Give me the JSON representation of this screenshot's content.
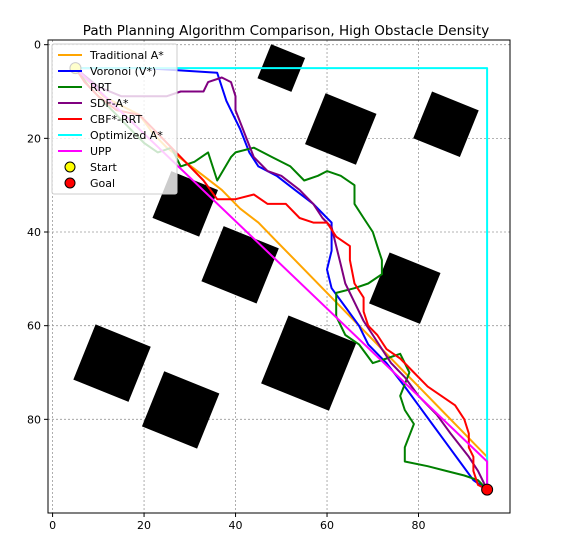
{
  "chart_data": {
    "type": "line",
    "title": "Path Planning Algorithm Comparison, High Obstacle Density",
    "xlabel": "",
    "ylabel": "",
    "xlim": [
      -1,
      100
    ],
    "ylim": [
      100,
      -1
    ],
    "y_axis_inverted": true,
    "grid": true,
    "grid_style": "dotted",
    "legend_position": "top-left",
    "x_ticks": [
      0,
      20,
      40,
      60,
      80
    ],
    "y_ticks": [
      0,
      20,
      40,
      60,
      80
    ],
    "obstacles": [
      {
        "shape": "rotated-square",
        "center": [
          50,
          5
        ],
        "size": 8,
        "color": "#000000"
      },
      {
        "shape": "rotated-square",
        "center": [
          63,
          18
        ],
        "size": 12,
        "color": "#000000"
      },
      {
        "shape": "rotated-square",
        "center": [
          86,
          17
        ],
        "size": 11,
        "color": "#000000"
      },
      {
        "shape": "rotated-square",
        "center": [
          29,
          34
        ],
        "size": 11,
        "color": "#000000"
      },
      {
        "shape": "rotated-square",
        "center": [
          41,
          47
        ],
        "size": 13,
        "color": "#000000"
      },
      {
        "shape": "rotated-square",
        "center": [
          77,
          52
        ],
        "size": 12,
        "color": "#000000"
      },
      {
        "shape": "rotated-square",
        "center": [
          56,
          68
        ],
        "size": 16,
        "color": "#000000"
      },
      {
        "shape": "rotated-square",
        "center": [
          13,
          68
        ],
        "size": 13,
        "color": "#000000"
      },
      {
        "shape": "rotated-square",
        "center": [
          28,
          78
        ],
        "size": 13,
        "color": "#000000"
      }
    ],
    "series": [
      {
        "name": "Traditional A*",
        "color": "#ffa500",
        "points": [
          [
            5,
            5
          ],
          [
            7,
            7
          ],
          [
            9,
            9
          ],
          [
            11,
            11
          ],
          [
            13,
            12
          ],
          [
            15,
            13
          ],
          [
            17,
            14
          ],
          [
            19,
            15
          ],
          [
            22,
            19
          ],
          [
            25,
            22
          ],
          [
            29,
            25
          ],
          [
            33,
            28
          ],
          [
            37,
            31
          ],
          [
            41,
            35
          ],
          [
            45,
            38
          ],
          [
            49,
            42
          ],
          [
            53,
            46
          ],
          [
            57,
            50
          ],
          [
            61,
            54
          ],
          [
            65,
            58
          ],
          [
            69,
            62
          ],
          [
            73,
            66
          ],
          [
            77,
            70
          ],
          [
            81,
            74
          ],
          [
            85,
            78
          ],
          [
            89,
            82
          ],
          [
            92,
            85
          ],
          [
            95,
            88
          ],
          [
            95,
            95
          ]
        ]
      },
      {
        "name": "Voronoi (V*)",
        "color": "#0000ff",
        "points": [
          [
            5,
            5
          ],
          [
            20,
            5
          ],
          [
            36,
            6
          ],
          [
            38,
            12
          ],
          [
            41,
            18
          ],
          [
            43,
            23
          ],
          [
            45,
            26
          ],
          [
            49,
            28
          ],
          [
            53,
            31
          ],
          [
            57,
            34
          ],
          [
            60,
            37
          ],
          [
            61,
            38
          ],
          [
            61,
            44
          ],
          [
            60,
            48
          ],
          [
            61,
            52
          ],
          [
            64,
            56
          ],
          [
            67,
            60
          ],
          [
            69,
            64
          ],
          [
            73,
            68
          ],
          [
            77,
            73
          ],
          [
            80,
            77
          ],
          [
            83,
            81
          ],
          [
            86,
            85
          ],
          [
            89,
            89
          ],
          [
            92,
            93
          ],
          [
            95,
            95
          ]
        ]
      },
      {
        "name": "RRT",
        "color": "#008000",
        "points": [
          [
            5,
            5
          ],
          [
            8,
            9
          ],
          [
            11,
            12
          ],
          [
            14,
            15
          ],
          [
            17,
            18
          ],
          [
            20,
            21
          ],
          [
            23,
            23
          ],
          [
            26,
            22
          ],
          [
            28,
            26
          ],
          [
            31,
            25
          ],
          [
            34,
            23
          ],
          [
            36,
            29
          ],
          [
            39,
            24
          ],
          [
            40,
            23
          ],
          [
            44,
            22
          ],
          [
            48,
            24
          ],
          [
            52,
            26
          ],
          [
            55,
            29
          ],
          [
            58,
            28
          ],
          [
            60,
            27
          ],
          [
            63,
            28
          ],
          [
            66,
            30
          ],
          [
            66,
            34
          ],
          [
            68,
            37
          ],
          [
            70,
            40
          ],
          [
            71,
            43
          ],
          [
            72,
            46
          ],
          [
            72,
            49
          ],
          [
            69,
            51
          ],
          [
            66,
            52
          ],
          [
            62,
            53
          ],
          [
            62,
            58
          ],
          [
            64,
            62
          ],
          [
            67,
            64
          ],
          [
            70,
            68
          ],
          [
            73,
            67
          ],
          [
            76,
            66
          ],
          [
            78,
            70
          ],
          [
            76,
            75
          ],
          [
            77,
            78
          ],
          [
            79,
            81
          ],
          [
            77,
            86
          ],
          [
            77,
            89
          ],
          [
            82,
            90
          ],
          [
            86,
            91
          ],
          [
            90,
            92
          ],
          [
            93,
            93
          ],
          [
            95,
            95
          ]
        ]
      },
      {
        "name": "SDF-A*",
        "color": "#800080",
        "points": [
          [
            5,
            5
          ],
          [
            10,
            9
          ],
          [
            15,
            11
          ],
          [
            20,
            11
          ],
          [
            25,
            11
          ],
          [
            28,
            10
          ],
          [
            33,
            10
          ],
          [
            34,
            8
          ],
          [
            37,
            7
          ],
          [
            39,
            8
          ],
          [
            40,
            11
          ],
          [
            40,
            14
          ],
          [
            42,
            19
          ],
          [
            44,
            24
          ],
          [
            47,
            27
          ],
          [
            50,
            28
          ],
          [
            54,
            31
          ],
          [
            57,
            34
          ],
          [
            59,
            37
          ],
          [
            61,
            39
          ],
          [
            62,
            43
          ],
          [
            63,
            47
          ],
          [
            64,
            51
          ],
          [
            66,
            55
          ],
          [
            68,
            59
          ],
          [
            70,
            62
          ],
          [
            72,
            65
          ],
          [
            74,
            68
          ],
          [
            77,
            71
          ],
          [
            80,
            75
          ],
          [
            84,
            79
          ],
          [
            87,
            83
          ],
          [
            91,
            88
          ],
          [
            93,
            91
          ],
          [
            95,
            95
          ]
        ]
      },
      {
        "name": "CBF*-RRT",
        "color": "#ff0000",
        "points": [
          [
            5,
            5
          ],
          [
            7,
            8
          ],
          [
            10,
            11
          ],
          [
            14,
            14
          ],
          [
            19,
            15
          ],
          [
            24,
            20
          ],
          [
            28,
            24
          ],
          [
            33,
            29
          ],
          [
            36,
            33
          ],
          [
            40,
            33
          ],
          [
            44,
            32
          ],
          [
            47,
            34
          ],
          [
            51,
            34
          ],
          [
            54,
            37
          ],
          [
            57,
            38
          ],
          [
            60,
            38
          ],
          [
            62,
            41
          ],
          [
            65,
            43
          ],
          [
            65,
            46
          ],
          [
            66,
            51
          ],
          [
            68,
            54
          ],
          [
            68,
            57
          ],
          [
            69,
            60
          ],
          [
            71,
            62
          ],
          [
            73,
            65
          ],
          [
            76,
            67
          ],
          [
            79,
            70
          ],
          [
            82,
            73
          ],
          [
            85,
            75
          ],
          [
            88,
            77
          ],
          [
            90,
            80
          ],
          [
            91,
            83
          ],
          [
            91,
            86
          ],
          [
            92,
            88
          ],
          [
            92,
            91
          ],
          [
            93,
            94
          ],
          [
            95,
            95
          ]
        ]
      },
      {
        "name": "Optimized A*",
        "color": "#00ffff",
        "points": [
          [
            5,
            5
          ],
          [
            95,
            5
          ],
          [
            95,
            95
          ]
        ]
      },
      {
        "name": "UPP",
        "color": "#ff00ff",
        "points": [
          [
            5,
            5
          ],
          [
            95,
            89
          ],
          [
            95,
            95
          ]
        ]
      }
    ],
    "markers": [
      {
        "name": "Start",
        "x": 5,
        "y": 5,
        "color": "#ffff00"
      },
      {
        "name": "Goal",
        "x": 95,
        "y": 95,
        "color": "#ff0000"
      }
    ]
  }
}
